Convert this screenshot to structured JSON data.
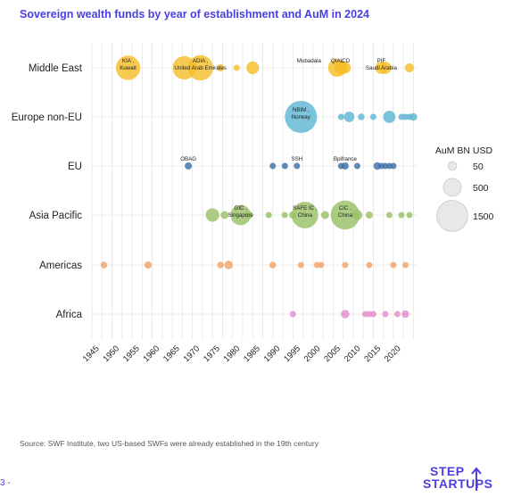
{
  "title": "Sovereign wealth funds by year of establishment and AuM in 2024",
  "source": "Source: SWF Institute, two US-based SWFs were already established in the 19th century",
  "page_number": "3 -",
  "logo": {
    "line1": "STEP",
    "line2": "STARTUPS",
    "icon": "step-arrow-icon"
  },
  "colors": {
    "Middle East": "#f5be2b",
    "Europe non-EU": "#5fb6d3",
    "EU": "#3e6fa8",
    "Asia Pacific": "#9ac168",
    "Americas": "#f0a36a",
    "Africa": "#e48dd0",
    "grid": "#e6e6e6",
    "title": "#4b3fe0"
  },
  "chart_data": {
    "type": "scatter",
    "subtype": "bubble",
    "x_ticks": [
      1945,
      1950,
      1955,
      1960,
      1965,
      1970,
      1975,
      1980,
      1985,
      1990,
      1995,
      2000,
      2005,
      2010,
      2015,
      2020
    ],
    "xlim": [
      1944,
      2025
    ],
    "categories": [
      "Middle East",
      "Europe non-EU",
      "EU",
      "Asia Pacific",
      "Americas",
      "Africa"
    ],
    "grid": true,
    "size_legend": {
      "title": "AuM BN USD",
      "values": [
        50,
        500,
        1500
      ],
      "placement": "right"
    },
    "series": [
      {
        "name": "Middle East",
        "points": [
          {
            "year": 1953,
            "aum": 920,
            "label": "KIA ,\nKuwait"
          },
          {
            "year": 1967,
            "aum": 850,
            "label": ""
          },
          {
            "year": 1971,
            "aum": 1000,
            "label": "ADIA ,\nUnited Arab  Emirates"
          },
          {
            "year": 1976,
            "aum": 85,
            "label": ""
          },
          {
            "year": 1980,
            "aum": 50,
            "label": ""
          },
          {
            "year": 1984,
            "aum": 250,
            "label": ""
          },
          {
            "year": 1998,
            "aum": 0,
            "label": "Mubadala"
          },
          {
            "year": 2005,
            "aum": 500,
            "label": "QIA ,"
          },
          {
            "year": 2006,
            "aum": 180,
            "label": ""
          },
          {
            "year": 2006,
            "aum": 300,
            "label": ""
          },
          {
            "year": 2007,
            "aum": 200,
            "label": "ICD"
          },
          {
            "year": 2016,
            "aum": 230,
            "label": "PIF\nSaudi Arabia"
          },
          {
            "year": 2017,
            "aum": 230,
            "label": ""
          },
          {
            "year": 2023,
            "aum": 130,
            "label": ""
          }
        ]
      },
      {
        "name": "Europe non-EU",
        "points": [
          {
            "year": 1996,
            "aum": 1600,
            "label": "NBIM ,\nNorway"
          },
          {
            "year": 2006,
            "aum": 40,
            "label": ""
          },
          {
            "year": 2008,
            "aum": 170,
            "label": ""
          },
          {
            "year": 2011,
            "aum": 70,
            "label": ""
          },
          {
            "year": 2014,
            "aum": 60,
            "label": ""
          },
          {
            "year": 2018,
            "aum": 230,
            "label": ""
          },
          {
            "year": 2021,
            "aum": 40,
            "label": ""
          },
          {
            "year": 2022,
            "aum": 40,
            "label": ""
          },
          {
            "year": 2023,
            "aum": 40,
            "label": ""
          },
          {
            "year": 2024,
            "aum": 90,
            "label": ""
          }
        ]
      },
      {
        "name": "EU",
        "points": [
          {
            "year": 1968,
            "aum": 80,
            "label": "OBAG"
          },
          {
            "year": 1989,
            "aum": 35,
            "label": ""
          },
          {
            "year": 1992,
            "aum": 35,
            "label": ""
          },
          {
            "year": 1995,
            "aum": 55,
            "label": "SSH"
          },
          {
            "year": 2006,
            "aum": 40,
            "label": ""
          },
          {
            "year": 2007,
            "aum": 80,
            "label": "Bpifrance"
          },
          {
            "year": 2010,
            "aum": 40,
            "label": ""
          },
          {
            "year": 2015,
            "aum": 90,
            "label": ""
          },
          {
            "year": 2016,
            "aum": 35,
            "label": ""
          },
          {
            "year": 2017,
            "aum": 35,
            "label": ""
          },
          {
            "year": 2018,
            "aum": 35,
            "label": ""
          },
          {
            "year": 2019,
            "aum": 40,
            "label": ""
          }
        ]
      },
      {
        "name": "Asia Pacific",
        "points": [
          {
            "year": 1974,
            "aum": 280,
            "label": ""
          },
          {
            "year": 1977,
            "aum": 100,
            "label": ""
          },
          {
            "year": 1981,
            "aum": 640,
            "label": "GIC ,\nSingapore"
          },
          {
            "year": 1983,
            "aum": 100,
            "label": ""
          },
          {
            "year": 1988,
            "aum": 40,
            "label": ""
          },
          {
            "year": 1992,
            "aum": 40,
            "label": ""
          },
          {
            "year": 1994,
            "aum": 90,
            "label": ""
          },
          {
            "year": 1997,
            "aum": 1100,
            "label": "SAFE IC ,\nChina"
          },
          {
            "year": 2002,
            "aum": 100,
            "label": ""
          },
          {
            "year": 2007,
            "aum": 1300,
            "label": "CIC ,\nChina"
          },
          {
            "year": 2010,
            "aum": 160,
            "label": ""
          },
          {
            "year": 2013,
            "aum": 80,
            "label": ""
          },
          {
            "year": 2018,
            "aum": 60,
            "label": ""
          },
          {
            "year": 2021,
            "aum": 40,
            "label": ""
          },
          {
            "year": 2023,
            "aum": 40,
            "label": ""
          }
        ]
      },
      {
        "name": "Americas",
        "points": [
          {
            "year": 1947,
            "aum": 70,
            "label": ""
          },
          {
            "year": 1958,
            "aum": 85,
            "label": ""
          },
          {
            "year": 1976,
            "aum": 70,
            "label": ""
          },
          {
            "year": 1978,
            "aum": 110,
            "label": ""
          },
          {
            "year": 1989,
            "aum": 70,
            "label": ""
          },
          {
            "year": 1996,
            "aum": 40,
            "label": ""
          },
          {
            "year": 2000,
            "aum": 55,
            "label": ""
          },
          {
            "year": 2001,
            "aum": 40,
            "label": ""
          },
          {
            "year": 2007,
            "aum": 55,
            "label": ""
          },
          {
            "year": 2013,
            "aum": 40,
            "label": ""
          },
          {
            "year": 2019,
            "aum": 40,
            "label": ""
          },
          {
            "year": 2022,
            "aum": 35,
            "label": ""
          }
        ]
      },
      {
        "name": "Africa",
        "points": [
          {
            "year": 1994,
            "aum": 40,
            "label": ""
          },
          {
            "year": 2007,
            "aum": 110,
            "label": ""
          },
          {
            "year": 2012,
            "aum": 50,
            "label": ""
          },
          {
            "year": 2013,
            "aum": 55,
            "label": ""
          },
          {
            "year": 2014,
            "aum": 40,
            "label": ""
          },
          {
            "year": 2017,
            "aum": 35,
            "label": ""
          },
          {
            "year": 2020,
            "aum": 55,
            "label": ""
          },
          {
            "year": 2022,
            "aum": 90,
            "label": ""
          }
        ]
      }
    ]
  }
}
